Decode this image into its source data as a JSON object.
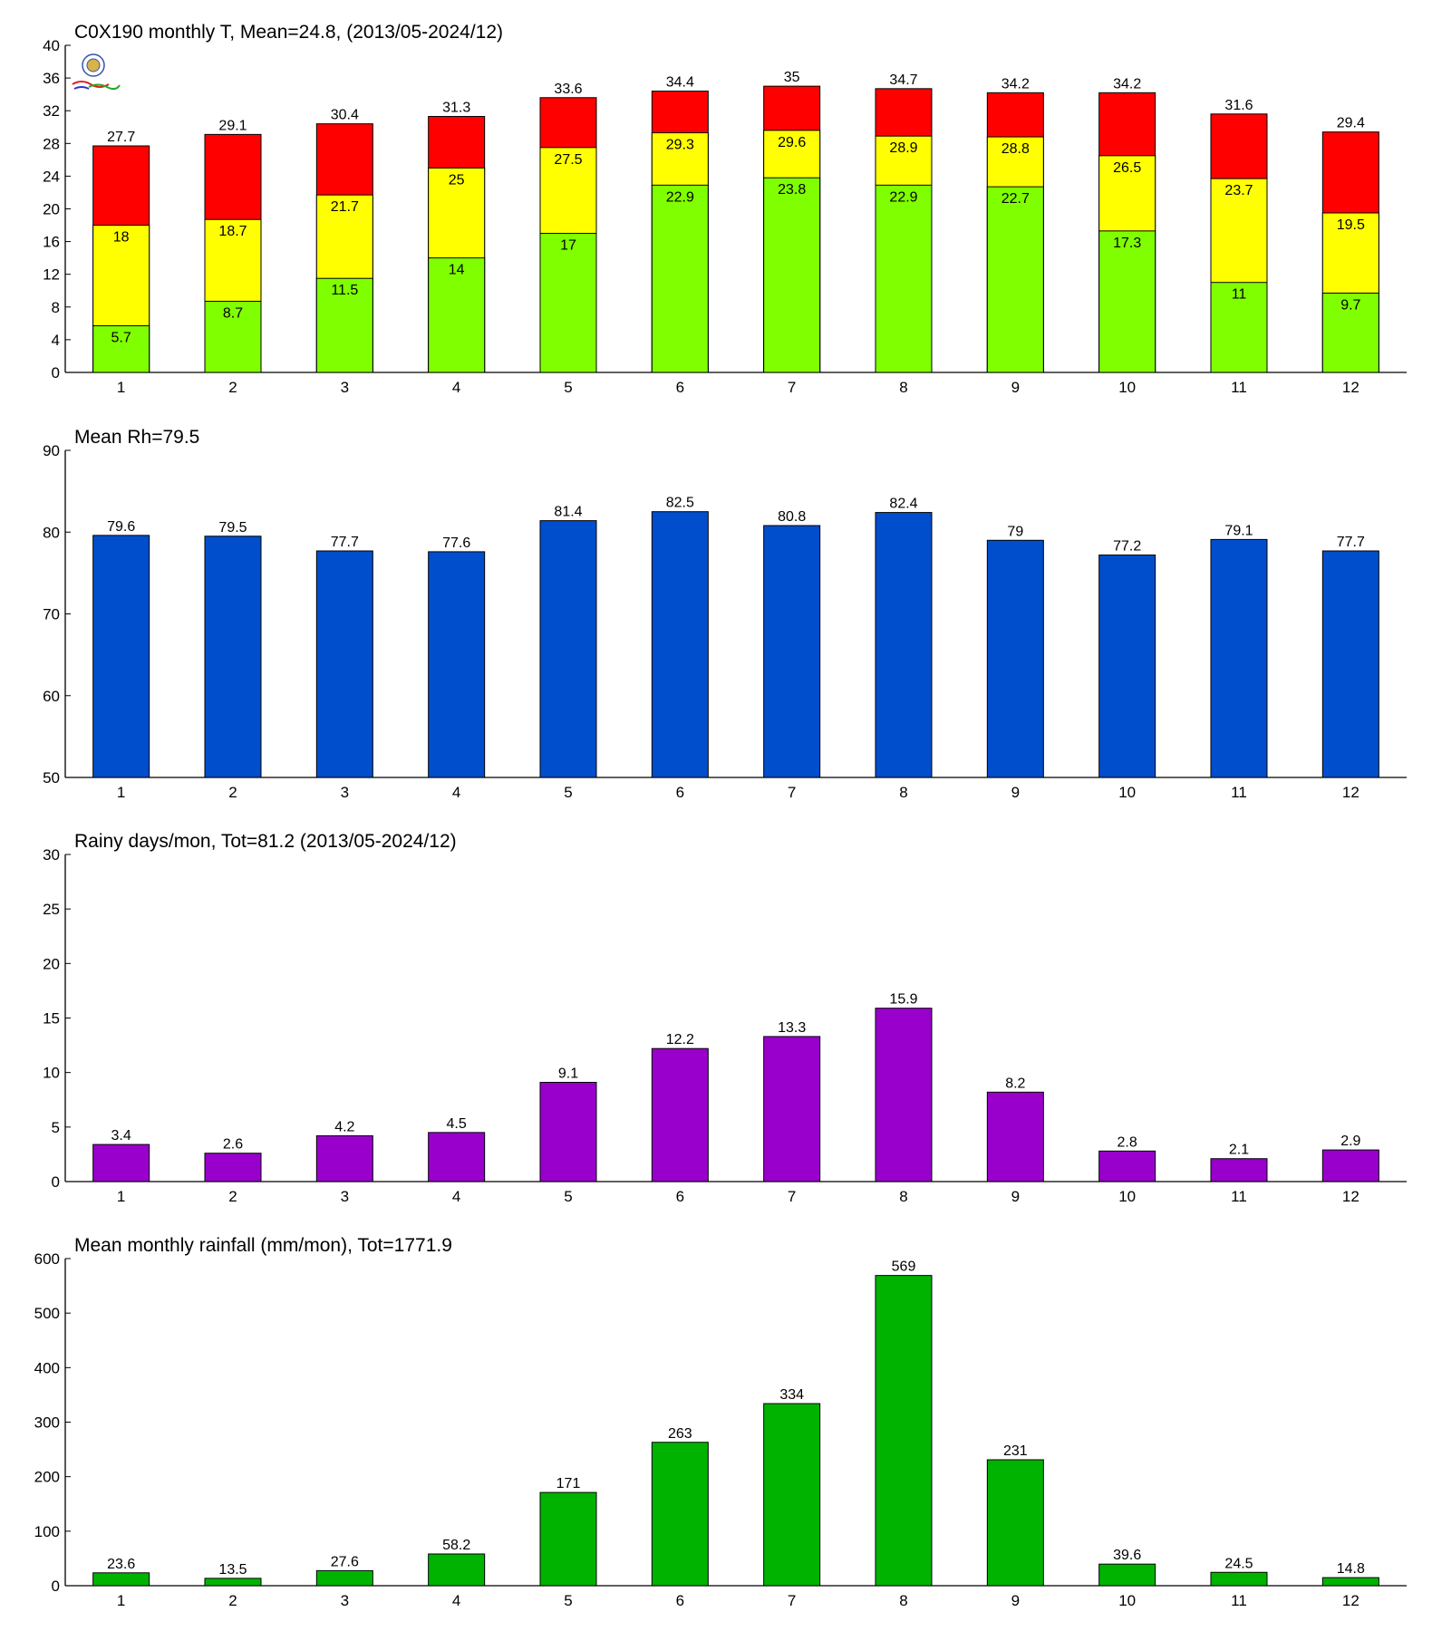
{
  "chart_data": [
    {
      "type": "bar",
      "stacked": false,
      "overlaid": true,
      "title": "C0X190 monthly T, Mean=24.8, (2013/05-2024/12)",
      "xlabel": "",
      "ylabel": "",
      "categories": [
        "1",
        "2",
        "3",
        "4",
        "5",
        "6",
        "7",
        "8",
        "9",
        "10",
        "11",
        "12"
      ],
      "ylim": [
        0,
        40
      ],
      "yticks": [
        0,
        4,
        8,
        12,
        16,
        20,
        24,
        28,
        32,
        36,
        40
      ],
      "grid": false,
      "legend": "none",
      "series": [
        {
          "values": [
            27.7,
            29.1,
            30.4,
            31.3,
            33.6,
            34.4,
            35,
            34.7,
            34.2,
            34.2,
            31.6,
            29.4
          ],
          "color": "#ff0000",
          "label_position": "above"
        },
        {
          "values": [
            18,
            18.7,
            21.7,
            25,
            27.5,
            29.3,
            29.6,
            28.9,
            28.8,
            26.5,
            23.7,
            19.5
          ],
          "color": "#ffff00",
          "label_position": "inside"
        },
        {
          "values": [
            5.7,
            8.7,
            11.5,
            14,
            17,
            22.9,
            23.8,
            22.9,
            22.7,
            17.3,
            11,
            9.7
          ],
          "color": "#80ff00",
          "label_position": "inside"
        }
      ]
    },
    {
      "type": "bar",
      "title": "Mean Rh=79.5",
      "xlabel": "",
      "ylabel": "",
      "categories": [
        "1",
        "2",
        "3",
        "4",
        "5",
        "6",
        "7",
        "8",
        "9",
        "10",
        "11",
        "12"
      ],
      "ylim": [
        50,
        90
      ],
      "yticks": [
        50,
        60,
        70,
        80,
        90
      ],
      "grid": false,
      "legend": "none",
      "series": [
        {
          "values": [
            79.6,
            79.5,
            77.7,
            77.6,
            81.4,
            82.5,
            80.8,
            82.4,
            79,
            77.2,
            79.1,
            77.7
          ],
          "color": "#004ecc",
          "label_position": "above"
        }
      ]
    },
    {
      "type": "bar",
      "title": "Rainy days/mon, Tot=81.2 (2013/05-2024/12)",
      "xlabel": "",
      "ylabel": "",
      "categories": [
        "1",
        "2",
        "3",
        "4",
        "5",
        "6",
        "7",
        "8",
        "9",
        "10",
        "11",
        "12"
      ],
      "ylim": [
        0,
        30
      ],
      "yticks": [
        0,
        5,
        10,
        15,
        20,
        25,
        30
      ],
      "grid": false,
      "legend": "none",
      "series": [
        {
          "values": [
            3.4,
            2.6,
            4.2,
            4.5,
            9.1,
            12.2,
            13.3,
            15.9,
            8.2,
            2.8,
            2.1,
            2.9
          ],
          "color": "#9900cc",
          "label_position": "above"
        }
      ]
    },
    {
      "type": "bar",
      "title": "Mean monthly rainfall (mm/mon), Tot=1771.9",
      "xlabel": "",
      "ylabel": "",
      "categories": [
        "1",
        "2",
        "3",
        "4",
        "5",
        "6",
        "7",
        "8",
        "9",
        "10",
        "11",
        "12"
      ],
      "ylim": [
        0,
        600
      ],
      "yticks": [
        0,
        100,
        200,
        300,
        400,
        500,
        600
      ],
      "grid": false,
      "legend": "none",
      "series": [
        {
          "values": [
            23.6,
            13.5,
            27.6,
            58.2,
            171,
            263,
            334,
            569,
            231,
            39.6,
            24.5,
            14.8
          ],
          "color": "#00b300",
          "label_position": "above"
        }
      ]
    }
  ]
}
